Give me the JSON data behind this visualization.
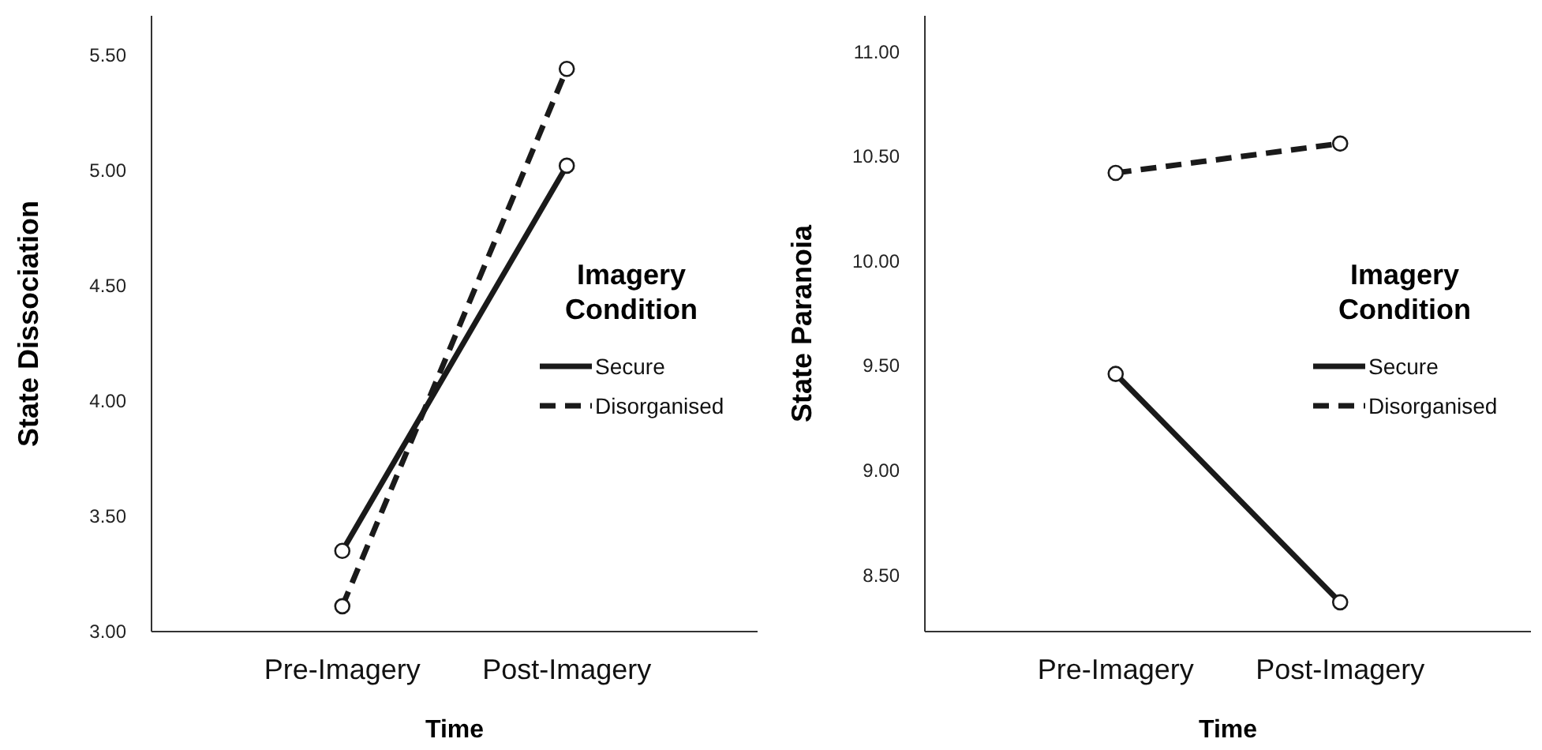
{
  "chart_data": [
    {
      "type": "line",
      "xlabel": "Time",
      "ylabel": "State Dissociation",
      "legend_title": "Imagery Condition",
      "categories": [
        "Pre-Imagery",
        "Post-Imagery"
      ],
      "ylim": [
        3.0,
        5.67
      ],
      "yticks": [
        {
          "value": 3,
          "label": "3.00"
        },
        {
          "value": 3.5,
          "label": "3.50"
        },
        {
          "value": 4,
          "label": "4.00"
        },
        {
          "value": 4.5,
          "label": "4.50"
        },
        {
          "value": 5,
          "label": "5.00"
        },
        {
          "value": 5.5,
          "label": "5.50"
        }
      ],
      "grid": false,
      "legend": "right",
      "marker": "circle",
      "series": [
        {
          "name": "Secure",
          "color": "#1a1a1a",
          "line_style": "solid",
          "values": [
            3.35,
            5.02
          ]
        },
        {
          "name": "Disorganised",
          "color": "#1a1a1a",
          "line_style": "dashed",
          "values": [
            3.11,
            5.44
          ]
        }
      ]
    },
    {
      "type": "line",
      "xlabel": "Time",
      "ylabel": "State Paranoia",
      "legend_title": "Imagery Condition",
      "categories": [
        "Pre-Imagery",
        "Post-Imagery"
      ],
      "ylim": [
        8.23,
        11.17
      ],
      "yticks": [
        {
          "value": 8.5,
          "label": "8.50"
        },
        {
          "value": 9,
          "label": "9.00"
        },
        {
          "value": 9.5,
          "label": "9.50"
        },
        {
          "value": 10,
          "label": "10.00"
        },
        {
          "value": 10.5,
          "label": "10.50"
        },
        {
          "value": 11,
          "label": "11.00"
        }
      ],
      "grid": false,
      "legend": "right",
      "marker": "circle",
      "series": [
        {
          "name": "Secure",
          "color": "#1a1a1a",
          "line_style": "solid",
          "values": [
            9.46,
            8.37
          ]
        },
        {
          "name": "Disorganised",
          "color": "#1a1a1a",
          "line_style": "dashed",
          "values": [
            10.42,
            10.56
          ]
        }
      ]
    }
  ]
}
